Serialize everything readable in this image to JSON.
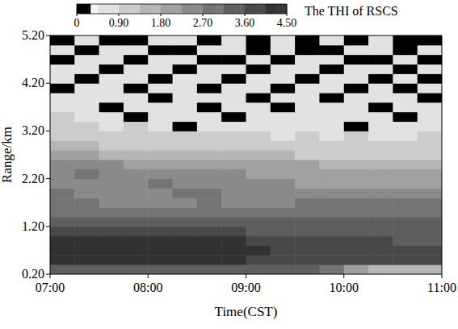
{
  "chart_data": {
    "type": "heatmap",
    "xlabel": "Time(CST)",
    "ylabel": "Range/km",
    "x": [
      7.125,
      7.375,
      7.625,
      7.875,
      8.125,
      8.375,
      8.625,
      8.875,
      9.125,
      9.375,
      9.625,
      9.875,
      10.125,
      10.375,
      10.625,
      10.875
    ],
    "y": [
      0.3,
      0.5,
      0.7,
      0.9,
      1.1,
      1.3,
      1.5,
      1.7,
      1.9,
      2.1,
      2.3,
      2.5,
      2.7,
      2.9,
      3.1,
      3.3,
      3.5,
      3.7,
      3.9,
      4.1,
      4.3,
      4.5,
      4.7,
      4.9,
      5.1
    ],
    "cells": [
      [
        3.4,
        3.5,
        3.5,
        3.4,
        3.5,
        3.5,
        3.4,
        3.4,
        3.3,
        3.3,
        3.2,
        3.0,
        2.0,
        1.5,
        1.4,
        1.4
      ],
      [
        4.2,
        4.3,
        4.3,
        4.3,
        4.2,
        4.2,
        4.2,
        4.1,
        4.0,
        3.9,
        3.7,
        3.7,
        3.6,
        3.6,
        3.6,
        3.6
      ],
      [
        4.3,
        4.4,
        4.3,
        4.4,
        4.3,
        4.3,
        4.2,
        4.2,
        4.1,
        4.0,
        3.7,
        3.7,
        3.6,
        3.6,
        3.6,
        3.6
      ],
      [
        4.2,
        4.2,
        4.3,
        4.2,
        4.2,
        4.1,
        4.1,
        4.1,
        4.0,
        3.8,
        3.7,
        3.6,
        3.6,
        3.6,
        3.5,
        3.5
      ],
      [
        3.7,
        3.8,
        3.7,
        3.7,
        3.6,
        3.6,
        3.6,
        3.6,
        3.5,
        3.5,
        3.5,
        3.4,
        3.4,
        3.5,
        3.5,
        3.4
      ],
      [
        3.4,
        3.5,
        3.4,
        3.4,
        3.4,
        3.3,
        3.3,
        3.4,
        3.3,
        3.2,
        3.2,
        3.3,
        3.3,
        3.2,
        3.2,
        3.2
      ],
      [
        3.0,
        3.1,
        2.9,
        2.8,
        2.7,
        2.9,
        2.8,
        2.7,
        2.8,
        2.7,
        2.8,
        2.9,
        2.8,
        2.9,
        2.8,
        2.8
      ],
      [
        2.8,
        2.7,
        2.6,
        2.5,
        2.4,
        2.6,
        2.7,
        2.6,
        2.5,
        2.6,
        2.7,
        2.8,
        2.7,
        2.7,
        2.8,
        2.7
      ],
      [
        2.7,
        2.6,
        2.6,
        2.5,
        2.6,
        2.7,
        2.7,
        2.6,
        2.6,
        2.6,
        2.5,
        2.6,
        2.6,
        2.6,
        2.6,
        2.5
      ],
      [
        2.6,
        2.6,
        2.6,
        2.6,
        2.7,
        2.6,
        2.5,
        2.5,
        2.4,
        2.3,
        2.2,
        2.1,
        2.2,
        2.1,
        2.0,
        2.1
      ],
      [
        2.6,
        2.7,
        2.6,
        2.5,
        2.5,
        2.4,
        2.4,
        2.3,
        2.2,
        2.1,
        2.0,
        1.9,
        1.9,
        1.8,
        1.8,
        1.8
      ],
      [
        2.4,
        2.3,
        2.3,
        2.2,
        2.2,
        2.1,
        2.0,
        2.0,
        1.9,
        1.8,
        1.8,
        1.7,
        1.7,
        1.6,
        1.6,
        1.6
      ],
      [
        1.9,
        1.8,
        1.7,
        1.6,
        1.6,
        1.5,
        1.4,
        1.5,
        1.4,
        1.4,
        1.3,
        1.3,
        1.2,
        1.3,
        1.2,
        1.2
      ],
      [
        1.5,
        1.4,
        1.3,
        1.2,
        1.3,
        1.2,
        1.1,
        1.2,
        1.1,
        1.0,
        1.1,
        1.0,
        1.1,
        1.0,
        1.0,
        1.0
      ],
      [
        1.2,
        1.1,
        1.0,
        1.1,
        0.9,
        1.0,
        0.9,
        1.0,
        0.9,
        0.8,
        0.9,
        0.8,
        0.9,
        0.8,
        0.8,
        0.9
      ],
      [
        1.0,
        0.9,
        0.8,
        0.9,
        0.8,
        0,
        0.8,
        0.7,
        0.8,
        0.7,
        0.8,
        0.7,
        0,
        0.7,
        0.8,
        0.7
      ],
      [
        0.9,
        0.8,
        0.7,
        0,
        0.7,
        0.8,
        0.7,
        0,
        0.7,
        0.6,
        0.7,
        0.6,
        0.7,
        0.6,
        0,
        0.7
      ],
      [
        0.8,
        0.7,
        0,
        0.7,
        0.6,
        0.7,
        0,
        0.6,
        0.6,
        0,
        0.6,
        0.7,
        0.6,
        0,
        0.6,
        0.6
      ],
      [
        0.7,
        0.6,
        0.7,
        0.6,
        0,
        0.6,
        0.6,
        0.7,
        0,
        0.6,
        0.6,
        0,
        0.6,
        0.6,
        0.7,
        0
      ],
      [
        0,
        0.7,
        0.6,
        0,
        0.6,
        0.7,
        0,
        0.6,
        0.6,
        0,
        0.7,
        0.6,
        0,
        0.6,
        0,
        0.6
      ],
      [
        0.6,
        0,
        0.6,
        0.7,
        0,
        0.6,
        0.6,
        0,
        0.7,
        0.6,
        0,
        0.6,
        0.6,
        0,
        0.6,
        0
      ],
      [
        0.7,
        0.6,
        0,
        0.6,
        0.6,
        0,
        0.7,
        0.6,
        0,
        0.6,
        0.6,
        0,
        0.7,
        0.6,
        0,
        0.6
      ],
      [
        0,
        0.6,
        0.6,
        0,
        0.7,
        0.6,
        0,
        0,
        0.6,
        0,
        0.6,
        0.6,
        0,
        0,
        0.6,
        0
      ],
      [
        0.6,
        0,
        0.7,
        0.6,
        0,
        0,
        0.6,
        0.7,
        0,
        0.6,
        0,
        0,
        0.6,
        0.6,
        0,
        0.6
      ],
      [
        0,
        0.6,
        0,
        0,
        0.6,
        0.7,
        0,
        0.6,
        0,
        0.7,
        0,
        0.6,
        0,
        0.6,
        0,
        0
      ]
    ],
    "xlim": [
      7,
      11
    ],
    "xticks": [
      {
        "value": 7,
        "label": "07:00"
      },
      {
        "value": 8,
        "label": "08:00"
      },
      {
        "value": 9,
        "label": "09:00"
      },
      {
        "value": 10,
        "label": "10:00"
      },
      {
        "value": 11,
        "label": "11:00"
      }
    ],
    "ylim": [
      0.2,
      5.2
    ],
    "yticks": [
      {
        "value": 0.2,
        "label": "0.20"
      },
      {
        "value": 1.2,
        "label": "1.20"
      },
      {
        "value": 2.2,
        "label": "2.20"
      },
      {
        "value": 3.2,
        "label": "3.20"
      },
      {
        "value": 4.2,
        "label": "4.20"
      },
      {
        "value": 5.2,
        "label": "5.20"
      }
    ],
    "colorbar": {
      "label": "The THI of RSCS",
      "range": [
        0,
        4.5
      ],
      "ticks": [
        0,
        {
          "value": 0.9,
          "label": "0.90"
        },
        {
          "value": 1.8,
          "label": "1.80"
        },
        {
          "value": 2.7,
          "label": "2.70"
        },
        {
          "value": 3.6,
          "label": "3.60"
        },
        {
          "value": 4.5,
          "label": "4.50"
        }
      ]
    }
  }
}
